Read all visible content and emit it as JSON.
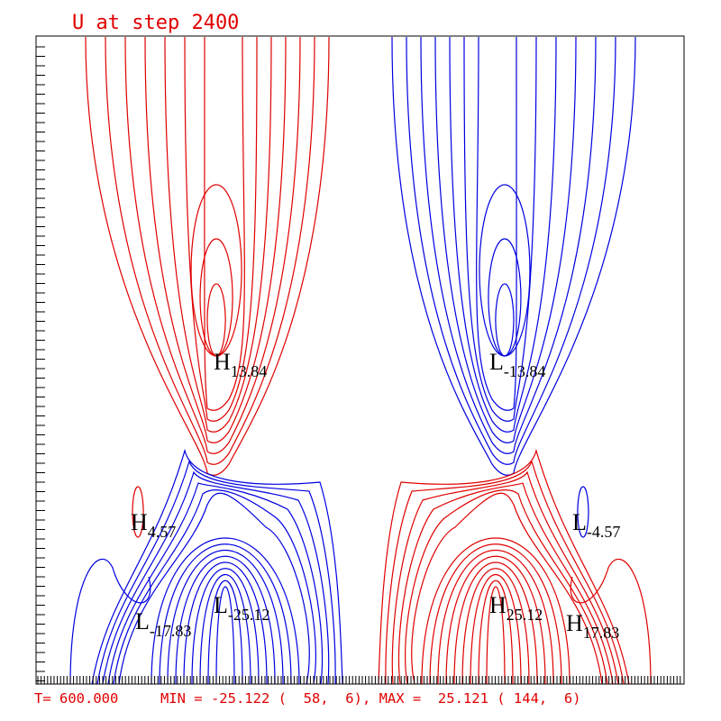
{
  "header": {
    "title": "U at step 2400"
  },
  "extrema": [
    {
      "letter": "H",
      "value": "13.84"
    },
    {
      "letter": "L",
      "value": "-13.84"
    },
    {
      "letter": "H",
      "value": "4.57"
    },
    {
      "letter": "L",
      "value": "-4.57"
    },
    {
      "letter": "L",
      "value": "-17.83"
    },
    {
      "letter": "L",
      "value": "-25.12"
    },
    {
      "letter": "H",
      "value": "25.12"
    },
    {
      "letter": "H",
      "value": "17.83"
    }
  ],
  "footer": {
    "text": "T= 600.000     MIN = -25.122 (  58,  6), MAX =  25.121 ( 144,  6)"
  }
}
